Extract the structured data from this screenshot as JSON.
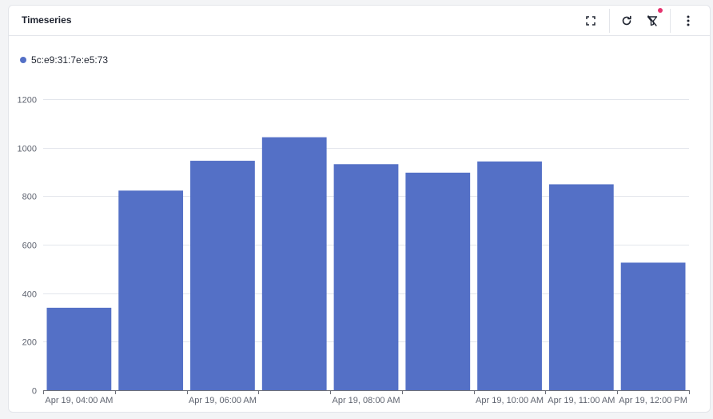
{
  "panel": {
    "title": "Timeseries",
    "actions": {
      "fullscreen_icon": "fullscreen-icon",
      "refresh_icon": "refresh-icon",
      "filter_icon": "filter-off-icon",
      "more_icon": "more-vertical-icon"
    },
    "badge_color": "#e5336f"
  },
  "chart_data": {
    "type": "bar",
    "color": "#5470c6",
    "legend_position": "top-left",
    "grid": true,
    "series": [
      {
        "name": "5c:e9:31:7e:e5:73",
        "values": [
          340,
          823,
          946,
          1043,
          932,
          897,
          943,
          849,
          526
        ]
      }
    ],
    "ylim": [
      0,
      1200
    ],
    "yticks": [
      0,
      200,
      400,
      600,
      800,
      1000,
      1200
    ],
    "x_labels": [
      {
        "label": "Apr 19, 04:00 AM",
        "at": 0
      },
      {
        "label": "Apr 19, 06:00 AM",
        "at": 2
      },
      {
        "label": "Apr 19, 08:00 AM",
        "at": 4
      },
      {
        "label": "Apr 19, 10:00 AM",
        "at": 6
      },
      {
        "label": "Apr 19, 11:00 AM",
        "at": 7
      },
      {
        "label": "Apr 19, 12:00 PM",
        "at": 8
      }
    ],
    "title": "",
    "xlabel": "",
    "ylabel": ""
  }
}
